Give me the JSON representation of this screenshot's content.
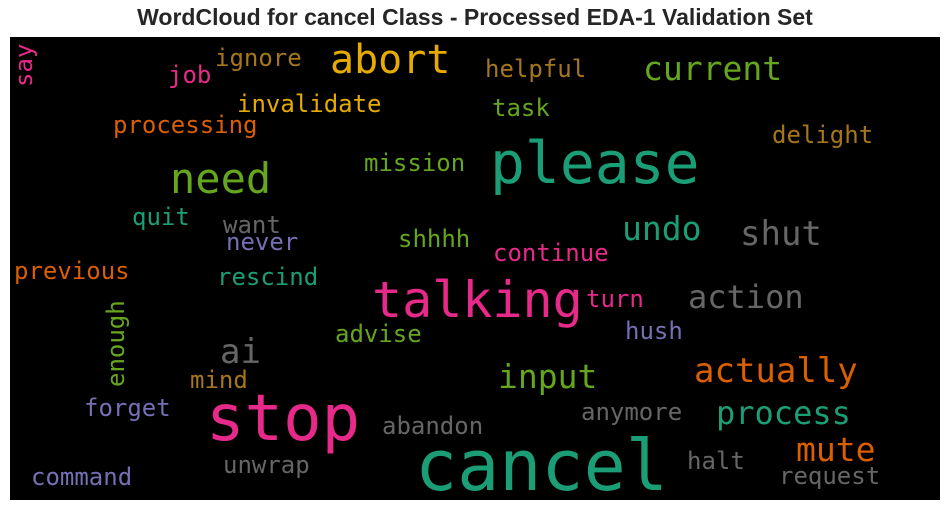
{
  "title": "WordCloud for cancel Class - Processed EDA-1 Validation Set",
  "colors": {
    "background": "#000000",
    "teal": "#1b9e77",
    "pink": "#e7298a",
    "orange": "#d95f02",
    "gold": "#e6ab02",
    "green": "#66a61e",
    "gray": "#666666",
    "purple": "#7570b3",
    "brown": "#a6761d"
  },
  "words": [
    {
      "text": "cancel",
      "color": "#1b9e77"
    },
    {
      "text": "stop",
      "color": "#e7298a"
    },
    {
      "text": "please",
      "color": "#1b9e77"
    },
    {
      "text": "talking",
      "color": "#e7298a"
    },
    {
      "text": "need",
      "color": "#66a61e"
    },
    {
      "text": "abort",
      "color": "#e6ab02"
    },
    {
      "text": "current",
      "color": "#66a61e"
    },
    {
      "text": "action",
      "color": "#666666"
    },
    {
      "text": "actually",
      "color": "#d95f02"
    },
    {
      "text": "process",
      "color": "#1b9e77"
    },
    {
      "text": "mute",
      "color": "#d95f02"
    },
    {
      "text": "input",
      "color": "#66a61e"
    },
    {
      "text": "undo",
      "color": "#1b9e77"
    },
    {
      "text": "shut",
      "color": "#666666"
    },
    {
      "text": "ai",
      "color": "#666666"
    },
    {
      "text": "processing",
      "color": "#d95f02"
    },
    {
      "text": "invalidate",
      "color": "#e6ab02"
    },
    {
      "text": "ignore",
      "color": "#a6761d"
    },
    {
      "text": "job",
      "color": "#e7298a"
    },
    {
      "text": "helpful",
      "color": "#a6761d"
    },
    {
      "text": "task",
      "color": "#66a61e"
    },
    {
      "text": "delight",
      "color": "#a6761d"
    },
    {
      "text": "mission",
      "color": "#66a61e"
    },
    {
      "text": "quit",
      "color": "#1b9e77"
    },
    {
      "text": "want",
      "color": "#666666"
    },
    {
      "text": "never",
      "color": "#7570b3"
    },
    {
      "text": "shhhh",
      "color": "#66a61e"
    },
    {
      "text": "continue",
      "color": "#e7298a"
    },
    {
      "text": "previous",
      "color": "#d95f02"
    },
    {
      "text": "rescind",
      "color": "#1b9e77"
    },
    {
      "text": "turn",
      "color": "#e7298a"
    },
    {
      "text": "hush",
      "color": "#7570b3"
    },
    {
      "text": "advise",
      "color": "#66a61e"
    },
    {
      "text": "mind",
      "color": "#a6761d"
    },
    {
      "text": "forget",
      "color": "#7570b3"
    },
    {
      "text": "abandon",
      "color": "#666666"
    },
    {
      "text": "anymore",
      "color": "#666666"
    },
    {
      "text": "command",
      "color": "#7570b3"
    },
    {
      "text": "unwrap",
      "color": "#666666"
    },
    {
      "text": "halt",
      "color": "#666666"
    },
    {
      "text": "request",
      "color": "#666666"
    },
    {
      "text": "say",
      "color": "#e7298a"
    },
    {
      "text": "enough",
      "color": "#66a61e"
    }
  ]
}
